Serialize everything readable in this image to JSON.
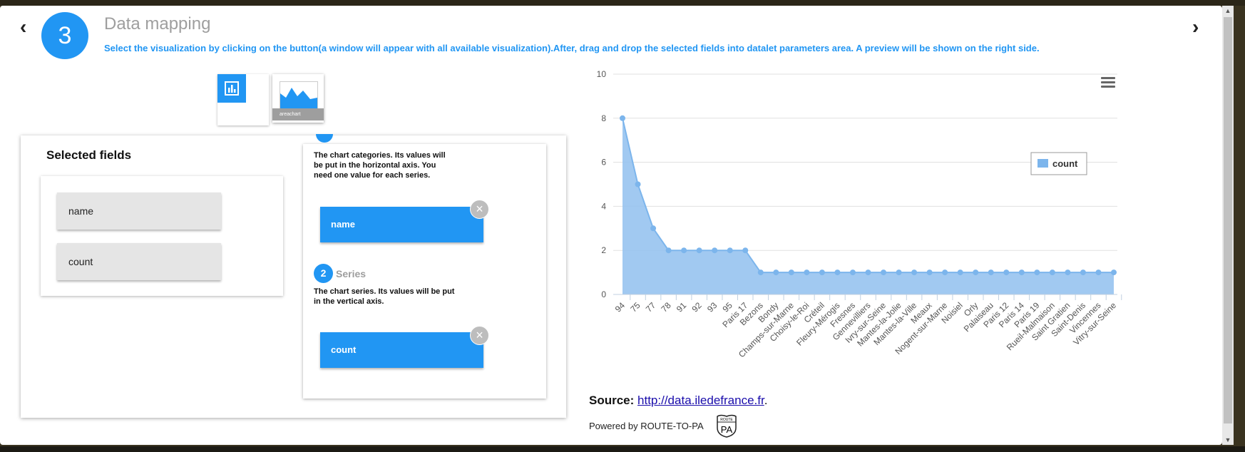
{
  "wizard": {
    "step_number": "3",
    "title": "Data mapping",
    "description": "Select the visualization by clicking on the button(a window will appear with all available visualization).After, drag and drop the selected fields into datalet parameters area. A preview will be shown on the right side.",
    "prev_icon": "chevron-left-icon",
    "next_icon": "chevron-right-icon"
  },
  "visualizations": {
    "selected_caption": "areachart"
  },
  "selected_fields": {
    "title": "Selected fields",
    "items": [
      "name",
      "count"
    ]
  },
  "parameters": {
    "categories_description": "The chart categories. Its values will be put in the horizontal axis. You need one value for each series.",
    "categories_value": "name",
    "series_number": "2",
    "series_label": "Series",
    "series_description": "The chart series. Its values will be put in the vertical axis.",
    "series_value": "count",
    "remove_icon": "close-icon"
  },
  "chart_data": {
    "type": "area",
    "categories": [
      "94",
      "75",
      "77",
      "78",
      "91",
      "92",
      "93",
      "95",
      "Paris 17",
      "Bezons",
      "Bondy",
      "Champs-sur-Marne",
      "Choisy-le-Roi",
      "Créteil",
      "Fleury-Mérogis",
      "Fresnes",
      "Gennevilliers",
      "Ivry-sur-Seine",
      "Mantes-la-Jolie",
      "Mantes-la-Ville",
      "Meaux",
      "Nogent-sur-Marne",
      "Noisiel",
      "Orly",
      "Palaiseau",
      "Paris 12",
      "Paris 14",
      "Paris 19",
      "Rueil-Malmaison",
      "Saint Gratien",
      "Saint-Denis",
      "Vincennes",
      "Vitry-sur-Seine"
    ],
    "series": [
      {
        "name": "count",
        "values": [
          8,
          5,
          3,
          2,
          2,
          2,
          2,
          2,
          2,
          1,
          1,
          1,
          1,
          1,
          1,
          1,
          1,
          1,
          1,
          1,
          1,
          1,
          1,
          1,
          1,
          1,
          1,
          1,
          1,
          1,
          1,
          1,
          1
        ]
      }
    ],
    "yticks": [
      "0",
      "2",
      "4",
      "6",
      "8",
      "10"
    ],
    "ylim": [
      0,
      10
    ],
    "grid": true,
    "legend": "right",
    "color": "#90bfee",
    "line_color": "#7cb5ec"
  },
  "footer": {
    "source_label": "Source:",
    "source_link": "http://data.iledefrance.fr",
    "source_suffix": ".",
    "powered_by": "Powered by ROUTE-TO-PA",
    "logo_top": "ROUTE",
    "logo_main": "PA"
  }
}
